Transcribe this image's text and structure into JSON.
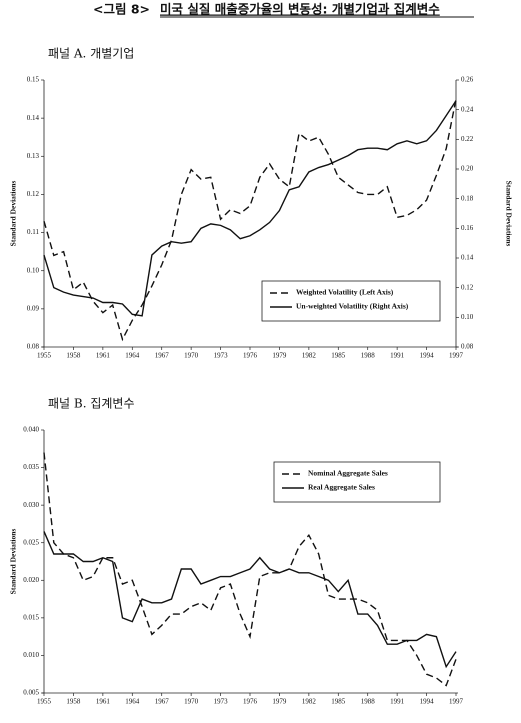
{
  "figure_label": "<그림 8>",
  "title": "미국 실질 매출증가율의 변동성: 개별기업과 집계변수",
  "chart_data": [
    {
      "type": "line",
      "title": "패널 A. 개별기업",
      "ylabel": "Standard Deviations",
      "y2label": "Standard Deviations",
      "x": [
        1955,
        1956,
        1957,
        1958,
        1959,
        1960,
        1961,
        1962,
        1963,
        1964,
        1965,
        1966,
        1967,
        1968,
        1969,
        1970,
        1971,
        1972,
        1973,
        1974,
        1975,
        1976,
        1977,
        1978,
        1979,
        1980,
        1981,
        1982,
        1983,
        1984,
        1985,
        1986,
        1987,
        1988,
        1989,
        1990,
        1991,
        1992,
        1993,
        1994,
        1995,
        1996,
        1997
      ],
      "xlim": [
        1955,
        1997
      ],
      "xticks": [
        1955,
        1958,
        1961,
        1964,
        1967,
        1970,
        1973,
        1976,
        1979,
        1982,
        1985,
        1988,
        1991,
        1994,
        1997
      ],
      "ylim": [
        0.08,
        0.15
      ],
      "yticks": [
        0.08,
        0.09,
        {
          "value": 0.1,
          "label": "0.10"
        },
        0.11,
        0.12,
        0.13,
        0.14,
        0.15
      ],
      "y2lim": [
        0.08,
        0.26
      ],
      "y2ticks": [
        0.08,
        {
          "value": 0.1,
          "label": "0.10"
        },
        0.12,
        0.14,
        0.16,
        0.18,
        {
          "value": 0.2,
          "label": "0.20"
        },
        0.22,
        0.24,
        0.26
      ],
      "legend": "lower right",
      "series": [
        {
          "name": "Weighted Volatility (Left Axis)",
          "color": "#111111",
          "dash": "dashed",
          "values": [
            0.113,
            0.104,
            0.105,
            0.095,
            0.097,
            0.092,
            0.089,
            0.091,
            0.082,
            0.087,
            0.091,
            0.096,
            0.1015,
            0.108,
            0.12,
            0.1265,
            0.124,
            0.1245,
            0.1135,
            0.116,
            0.115,
            0.117,
            0.1245,
            0.128,
            0.124,
            0.122,
            0.136,
            0.134,
            0.135,
            0.1305,
            0.1245,
            0.1225,
            0.1205,
            0.12,
            0.12,
            0.122,
            0.114,
            0.1145,
            0.116,
            0.1185,
            0.125,
            0.132,
            0.145
          ]
        },
        {
          "name": "Un-weighted Volatility (Right Axis)",
          "color": "#111111",
          "dash": "solid",
          "axis": "y2",
          "values": [
            0.142,
            0.12,
            0.117,
            0.115,
            0.114,
            0.113,
            0.11,
            0.11,
            0.109,
            0.102,
            0.101,
            0.142,
            0.148,
            0.151,
            0.15,
            0.151,
            0.16,
            0.163,
            0.162,
            0.159,
            0.153,
            0.155,
            0.159,
            0.164,
            0.172,
            0.186,
            0.188,
            0.198,
            0.201,
            0.203,
            0.206,
            0.209,
            0.213,
            0.214,
            0.214,
            0.213,
            0.217,
            0.219,
            0.217,
            0.219,
            0.226,
            0.236,
            0.246
          ]
        }
      ]
    },
    {
      "type": "line",
      "title": "패널 B. 집계변수",
      "ylabel": "Standard Deviations",
      "x": [
        1955,
        1956,
        1957,
        1958,
        1959,
        1960,
        1961,
        1962,
        1963,
        1964,
        1965,
        1966,
        1967,
        1968,
        1969,
        1970,
        1971,
        1972,
        1973,
        1974,
        1975,
        1976,
        1977,
        1978,
        1979,
        1980,
        1981,
        1982,
        1983,
        1984,
        1985,
        1986,
        1987,
        1988,
        1989,
        1990,
        1991,
        1992,
        1993,
        1994,
        1995,
        1996,
        1997
      ],
      "xlim": [
        1955,
        1997
      ],
      "xticks": [
        1955,
        1958,
        1961,
        1964,
        1967,
        1970,
        1973,
        1976,
        1979,
        1982,
        1985,
        1988,
        1991,
        1994,
        1997
      ],
      "ylim": [
        0.005,
        0.04
      ],
      "yticks": [
        0.005,
        {
          "value": 0.01,
          "label": "0.010"
        },
        0.015,
        {
          "value": 0.02,
          "label": "0.020"
        },
        0.025,
        {
          "value": 0.03,
          "label": "0.030"
        },
        0.035,
        {
          "value": 0.04,
          "label": "0.040"
        }
      ],
      "legend": "upper right",
      "series": [
        {
          "name": "Nominal Aggregate Sales",
          "color": "#111111",
          "dash": "dashed",
          "values": [
            0.037,
            0.025,
            0.0235,
            0.023,
            0.02,
            0.0205,
            0.023,
            0.023,
            0.0195,
            0.02,
            0.0165,
            0.0128,
            0.014,
            0.0155,
            0.0155,
            0.0165,
            0.017,
            0.016,
            0.019,
            0.0195,
            0.0155,
            0.0125,
            0.0205,
            0.021,
            0.021,
            0.0215,
            0.0245,
            0.026,
            0.0235,
            0.018,
            0.0175,
            0.0175,
            0.0175,
            0.017,
            0.016,
            0.012,
            0.012,
            0.012,
            0.01,
            0.0075,
            0.007,
            0.006,
            0.0095
          ]
        },
        {
          "name": "Real Aggregate Sales",
          "color": "#111111",
          "dash": "solid",
          "values": [
            0.0265,
            0.0235,
            0.0235,
            0.0235,
            0.0225,
            0.0225,
            0.023,
            0.0225,
            0.015,
            0.0145,
            0.0175,
            0.017,
            0.017,
            0.0175,
            0.0215,
            0.0215,
            0.0195,
            0.02,
            0.0205,
            0.0205,
            0.021,
            0.0215,
            0.023,
            0.0215,
            0.021,
            0.0215,
            0.021,
            0.021,
            0.0205,
            0.02,
            0.0185,
            0.02,
            0.0155,
            0.0155,
            0.014,
            0.0115,
            0.0115,
            0.012,
            0.012,
            0.0128,
            0.0125,
            0.0085,
            0.0105
          ]
        }
      ]
    }
  ]
}
